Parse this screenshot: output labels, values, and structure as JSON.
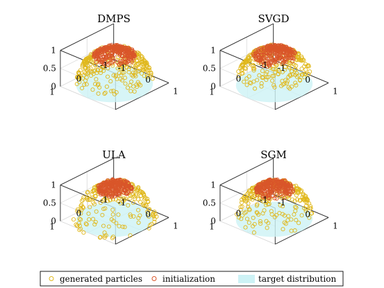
{
  "figure": {
    "colors": {
      "generated": "#e0b81c",
      "initialization": "#d9562a",
      "target": "#cdf2f5",
      "grid": "#d9d9d9",
      "axis": "#222222"
    }
  },
  "legend": {
    "generated": "generated particles",
    "initialization": "initialization",
    "target": "target distribution"
  },
  "chart_data": [
    {
      "type": "scatter",
      "title": "DMPS",
      "xlim": [
        -1,
        1
      ],
      "ylim": [
        -1,
        1
      ],
      "zlim": [
        0,
        1
      ],
      "x_ticks": [
        "-1",
        "0",
        "1"
      ],
      "y_ticks": [
        "-1",
        "0",
        "1"
      ],
      "z_ticks": [
        "0",
        "0.5",
        "1"
      ],
      "series": [
        {
          "name": "generated particles",
          "count": 300,
          "r_range": [
            0.3,
            1.0
          ],
          "distribution": "hemisphere spread to rim"
        },
        {
          "name": "initialization",
          "count": 260,
          "r_range": [
            0.0,
            0.55
          ],
          "distribution": "dense cap near top"
        },
        {
          "name": "target distribution",
          "support_radius": 1.0
        }
      ]
    },
    {
      "type": "scatter",
      "title": "SVGD",
      "xlim": [
        -1,
        1
      ],
      "ylim": [
        -1,
        1
      ],
      "zlim": [
        0,
        1
      ],
      "x_ticks": [
        "-1",
        "0",
        "1"
      ],
      "y_ticks": [
        "-1",
        "0",
        "1"
      ],
      "z_ticks": [
        "0",
        "0.5",
        "1"
      ],
      "series": [
        {
          "name": "generated particles",
          "count": 260,
          "r_range": [
            0.2,
            0.95
          ],
          "distribution": "hemisphere"
        },
        {
          "name": "initialization",
          "count": 260,
          "r_range": [
            0.0,
            0.55
          ],
          "distribution": "dense cap near top"
        },
        {
          "name": "target distribution",
          "support_radius": 1.0
        }
      ]
    },
    {
      "type": "scatter",
      "title": "ULA",
      "xlim": [
        -1,
        1
      ],
      "ylim": [
        -1,
        1
      ],
      "zlim": [
        0,
        1
      ],
      "x_ticks": [
        "-1",
        "0",
        "1"
      ],
      "y_ticks": [
        "-1",
        "0",
        "1"
      ],
      "z_ticks": [
        "0",
        "0.5",
        "1"
      ],
      "series": [
        {
          "name": "generated particles",
          "count": 220,
          "r_range": [
            0.2,
            1.1
          ],
          "distribution": "hemisphere with outliers"
        },
        {
          "name": "initialization",
          "count": 260,
          "r_range": [
            0.0,
            0.45
          ],
          "distribution": "dense cap near top"
        },
        {
          "name": "target distribution",
          "support_radius": 1.0
        }
      ]
    },
    {
      "type": "scatter",
      "title": "SGM",
      "xlim": [
        -1,
        1
      ],
      "ylim": [
        -1,
        1
      ],
      "zlim": [
        0,
        1
      ],
      "x_ticks": [
        "-1",
        "0",
        "1"
      ],
      "y_ticks": [
        "-1",
        "0",
        "1"
      ],
      "z_ticks": [
        "0",
        "0.5",
        "1"
      ],
      "series": [
        {
          "name": "generated particles",
          "count": 260,
          "r_range": [
            0.2,
            1.0
          ],
          "distribution": "hemisphere"
        },
        {
          "name": "initialization",
          "count": 260,
          "r_range": [
            0.0,
            0.5
          ],
          "distribution": "dense cap near top"
        },
        {
          "name": "target distribution",
          "support_radius": 1.0
        }
      ]
    }
  ]
}
